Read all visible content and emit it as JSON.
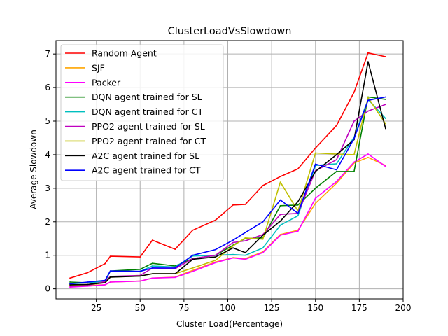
{
  "chart_data": {
    "type": "line",
    "title": "ClusterLoadVsSlowdown",
    "xlabel": "Cluster Load(Percentage)",
    "ylabel": "Average Slowdown",
    "xlim": [
      2,
      200
    ],
    "ylim": [
      -0.3,
      7.4
    ],
    "xticks": [
      25,
      50,
      75,
      100,
      125,
      150,
      175,
      200
    ],
    "yticks": [
      0,
      1,
      2,
      3,
      4,
      5,
      6,
      7
    ],
    "grid": true,
    "legend_position": "top-left",
    "x": [
      10,
      20,
      30,
      33,
      50,
      57,
      70,
      80,
      93,
      103,
      110,
      120,
      130,
      140,
      150,
      162,
      172,
      180,
      190
    ],
    "series": [
      {
        "name": "Random Agent",
        "color": "#ff0000",
        "values": [
          0.32,
          0.48,
          0.75,
          0.97,
          0.95,
          1.45,
          1.18,
          1.75,
          2.05,
          2.5,
          2.52,
          3.08,
          3.35,
          3.58,
          4.2,
          4.87,
          5.86,
          7.03,
          6.92
        ]
      },
      {
        "name": "SJF",
        "color": "#ffa500",
        "values": [
          0.08,
          0.1,
          0.12,
          0.2,
          0.23,
          0.32,
          0.35,
          0.55,
          0.8,
          0.93,
          0.9,
          1.1,
          1.62,
          1.75,
          2.55,
          3.15,
          3.75,
          3.92,
          3.68
        ]
      },
      {
        "name": "Packer",
        "color": "#ff00ff",
        "values": [
          0.05,
          0.08,
          0.12,
          0.2,
          0.23,
          0.32,
          0.34,
          0.52,
          0.78,
          0.92,
          0.88,
          1.08,
          1.6,
          1.72,
          2.7,
          3.2,
          3.78,
          4.02,
          3.65
        ]
      },
      {
        "name": "DQN agent trained for SL",
        "color": "#008000",
        "values": [
          0.2,
          0.18,
          0.22,
          0.53,
          0.58,
          0.76,
          0.68,
          0.9,
          1.0,
          1.3,
          1.5,
          1.52,
          2.48,
          2.5,
          3.0,
          3.5,
          3.5,
          5.72,
          5.65
        ]
      },
      {
        "name": "DQN agent trained for CT",
        "color": "#00bfbf",
        "values": [
          0.15,
          0.18,
          0.23,
          0.53,
          0.52,
          0.68,
          0.65,
          0.98,
          1.0,
          1.02,
          1.0,
          1.22,
          1.9,
          2.18,
          3.68,
          3.73,
          4.52,
          5.65,
          5.08
        ]
      },
      {
        "name": "PPO2 agent trained for SL",
        "color": "#bf00bf",
        "values": [
          0.08,
          0.1,
          0.22,
          0.37,
          0.4,
          0.62,
          0.6,
          0.9,
          1.0,
          1.38,
          1.43,
          1.62,
          2.22,
          2.25,
          3.52,
          3.85,
          5.0,
          5.3,
          5.5
        ]
      },
      {
        "name": "PPO2 agent trained for CT",
        "color": "#bfbf00",
        "values": [
          0.1,
          0.13,
          0.18,
          0.35,
          0.38,
          0.45,
          0.45,
          0.62,
          0.85,
          1.28,
          1.52,
          1.48,
          3.18,
          2.32,
          4.05,
          4.02,
          4.0,
          5.7,
          4.92
        ]
      },
      {
        "name": "A2C agent trained for SL",
        "color": "#000000",
        "values": [
          0.12,
          0.13,
          0.18,
          0.35,
          0.38,
          0.45,
          0.45,
          0.88,
          0.95,
          1.22,
          1.08,
          1.6,
          2.02,
          2.6,
          3.5,
          4.0,
          4.45,
          6.77,
          4.78
        ]
      },
      {
        "name": "A2C agent trained for CT",
        "color": "#0000ff",
        "values": [
          0.15,
          0.2,
          0.25,
          0.53,
          0.52,
          0.62,
          0.62,
          1.0,
          1.17,
          1.45,
          1.68,
          2.0,
          2.65,
          2.25,
          3.72,
          3.55,
          4.48,
          5.62,
          5.72
        ]
      }
    ]
  }
}
